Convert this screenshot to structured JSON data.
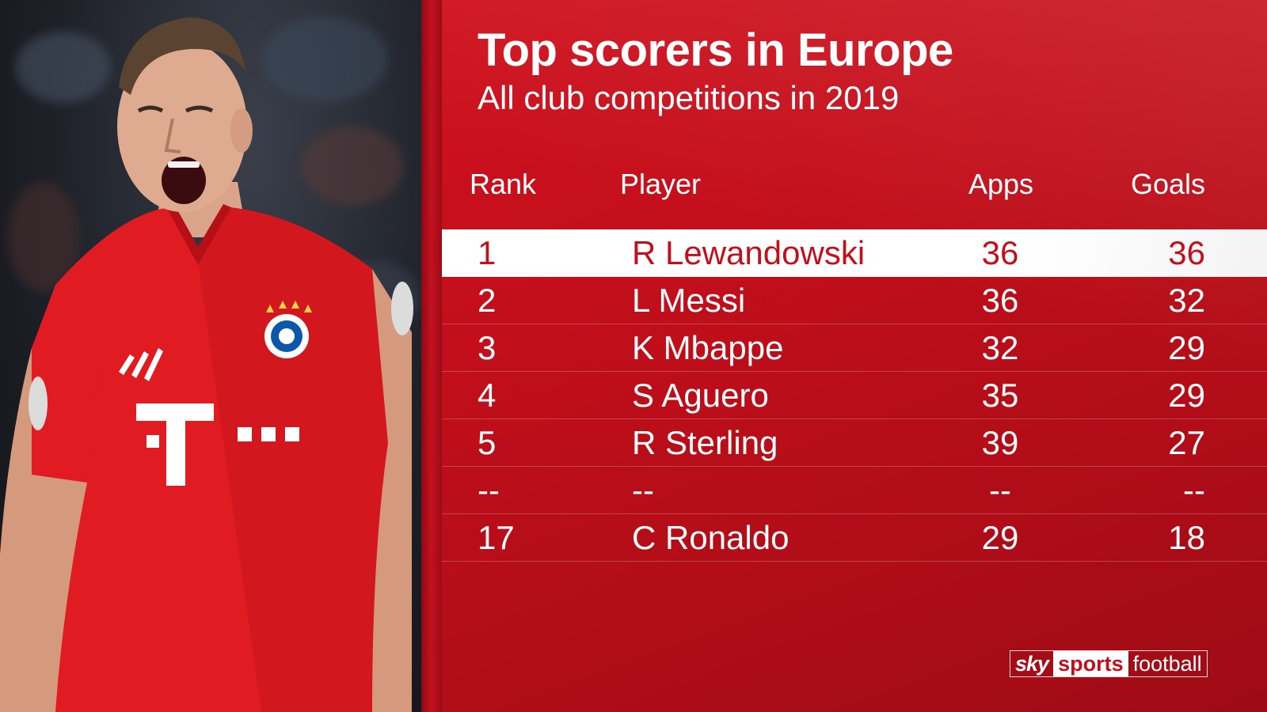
{
  "title": "Top scorers in Europe",
  "subtitle": "All club competitions in 2019",
  "columns": {
    "rank": "Rank",
    "player": "Player",
    "apps": "Apps",
    "goals": "Goals"
  },
  "rows": [
    {
      "rank": "1",
      "player": "R Lewandowski",
      "apps": "36",
      "goals": "36"
    },
    {
      "rank": "2",
      "player": "L Messi",
      "apps": "36",
      "goals": "32"
    },
    {
      "rank": "3",
      "player": "K Mbappe",
      "apps": "32",
      "goals": "29"
    },
    {
      "rank": "4",
      "player": "S Aguero",
      "apps": "35",
      "goals": "29"
    },
    {
      "rank": "5",
      "player": "R Sterling",
      "apps": "39",
      "goals": "27"
    },
    {
      "rank": "--",
      "player": "--",
      "apps": "--",
      "goals": "--"
    },
    {
      "rank": "17",
      "player": "C Ronaldo",
      "apps": "29",
      "goals": "18"
    }
  ],
  "logo": {
    "sky": "sky",
    "sports": "sports",
    "football": "football"
  },
  "colors": {
    "accent_red": "#c20f1b",
    "highlight_row": "#ffffff",
    "text": "#ffffff"
  },
  "chart_data": {
    "type": "table",
    "title": "Top scorers in Europe",
    "subtitle": "All club competitions in 2019",
    "columns": [
      "Rank",
      "Player",
      "Apps",
      "Goals"
    ],
    "rows": [
      [
        "1",
        "R Lewandowski",
        36,
        36
      ],
      [
        "2",
        "L Messi",
        36,
        32
      ],
      [
        "3",
        "K Mbappe",
        32,
        29
      ],
      [
        "4",
        "S Aguero",
        35,
        29
      ],
      [
        "5",
        "R Sterling",
        39,
        27
      ],
      [
        "--",
        "--",
        "--",
        "--"
      ],
      [
        "17",
        "C Ronaldo",
        29,
        18
      ]
    ],
    "highlighted_row": 0
  }
}
